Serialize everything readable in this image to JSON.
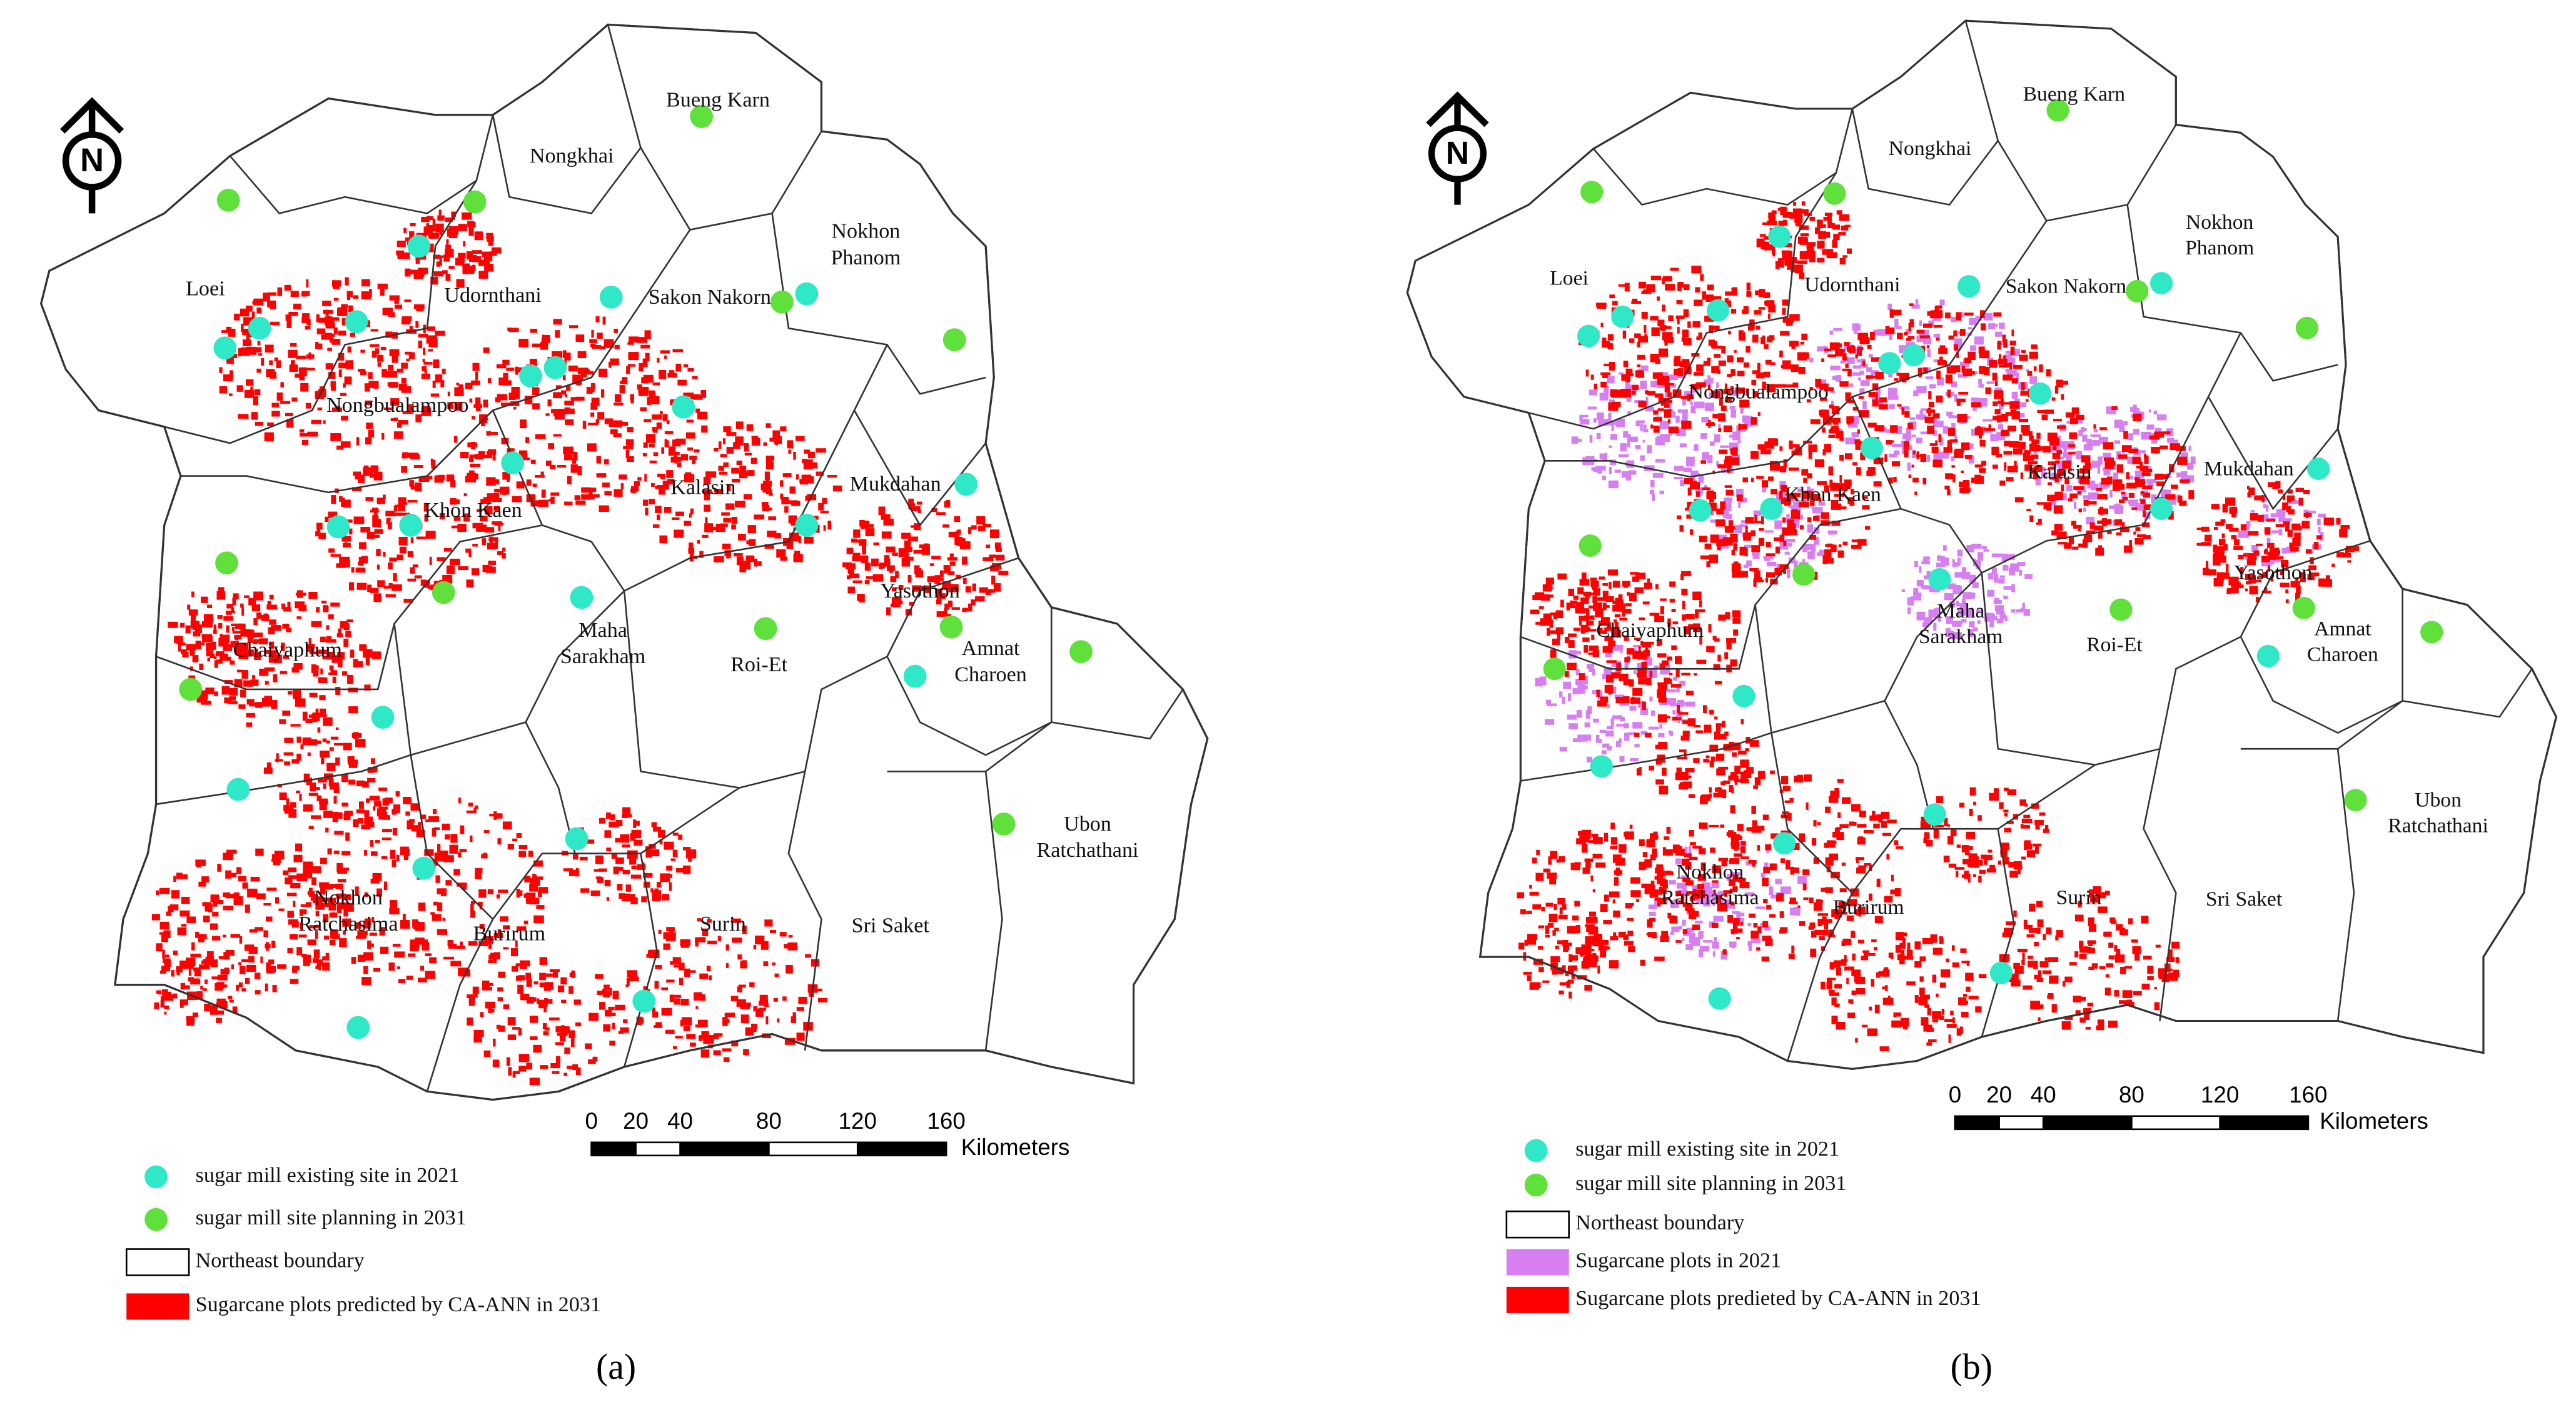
{
  "panels": [
    {
      "label": "(a)",
      "north": "N",
      "places": [
        {
          "lines": [
            "Bueng Karn"
          ]
        },
        {
          "lines": [
            "Nongkhai"
          ]
        },
        {
          "lines": [
            "Nokhon",
            "Phanom"
          ]
        },
        {
          "lines": [
            "Loei"
          ]
        },
        {
          "lines": [
            "Udornthani"
          ]
        },
        {
          "lines": [
            "Sakon Nakorn"
          ]
        },
        {
          "lines": [
            "Nongbualampoo"
          ]
        },
        {
          "lines": [
            "Kalasin"
          ]
        },
        {
          "lines": [
            "Mukdahan"
          ]
        },
        {
          "lines": [
            "Khon Kaen"
          ]
        },
        {
          "lines": [
            "Yasothon"
          ]
        },
        {
          "lines": [
            "Maha",
            "Sarakham"
          ]
        },
        {
          "lines": [
            "Chaiyaphum"
          ]
        },
        {
          "lines": [
            "Roi-Et"
          ]
        },
        {
          "lines": [
            "Amnat",
            "Charoen"
          ]
        },
        {
          "lines": [
            "Ubon",
            "Ratchathani"
          ]
        },
        {
          "lines": [
            "Nokhon",
            "Ratchasima"
          ]
        },
        {
          "lines": [
            "Burirum"
          ]
        },
        {
          "lines": [
            "Surin"
          ]
        },
        {
          "lines": [
            "Sri Saket"
          ]
        }
      ],
      "scale_ticks": [
        0,
        20,
        40,
        80,
        120,
        160
      ],
      "scale_unit": "Kilometers",
      "legend": [
        "sugar mill existing site in 2021",
        "sugar mill site planning in 2031",
        "Northeast boundary",
        "Sugarcane plots predicted by CA-ANN in 2031"
      ]
    },
    {
      "label": "(b)",
      "north": "N",
      "places": [
        {
          "lines": [
            "Bueng Karn"
          ]
        },
        {
          "lines": [
            "Nongkhai"
          ]
        },
        {
          "lines": [
            "Nokhon",
            "Phanom"
          ]
        },
        {
          "lines": [
            "Loei"
          ]
        },
        {
          "lines": [
            "Udornthani"
          ]
        },
        {
          "lines": [
            "Sakon Nakorn"
          ]
        },
        {
          "lines": [
            "Nongbualampoo"
          ]
        },
        {
          "lines": [
            "Kalasin"
          ]
        },
        {
          "lines": [
            "Mukdahan"
          ]
        },
        {
          "lines": [
            "Khon Kaen"
          ]
        },
        {
          "lines": [
            "Yasothon"
          ]
        },
        {
          "lines": [
            "Maha",
            "Sarakham"
          ]
        },
        {
          "lines": [
            "Chaiyaphum"
          ]
        },
        {
          "lines": [
            "Roi-Et"
          ]
        },
        {
          "lines": [
            "Amnat",
            "Charoen"
          ]
        },
        {
          "lines": [
            "Ubon",
            "Ratchathani"
          ]
        },
        {
          "lines": [
            "Nokhon",
            "Ratchasima"
          ]
        },
        {
          "lines": [
            "Burirum"
          ]
        },
        {
          "lines": [
            "Surin"
          ]
        },
        {
          "lines": [
            "Sri Saket"
          ]
        }
      ],
      "scale_ticks": [
        0,
        20,
        40,
        80,
        120,
        160
      ],
      "scale_unit": "Kilometers",
      "legend": [
        "sugar mill existing site in 2021",
        "sugar mill site planning in 2031",
        "Northeast boundary",
        "Sugarcane plots in 2021",
        "Sugarcane plots predieted by CA-ANN in 2031"
      ]
    }
  ]
}
